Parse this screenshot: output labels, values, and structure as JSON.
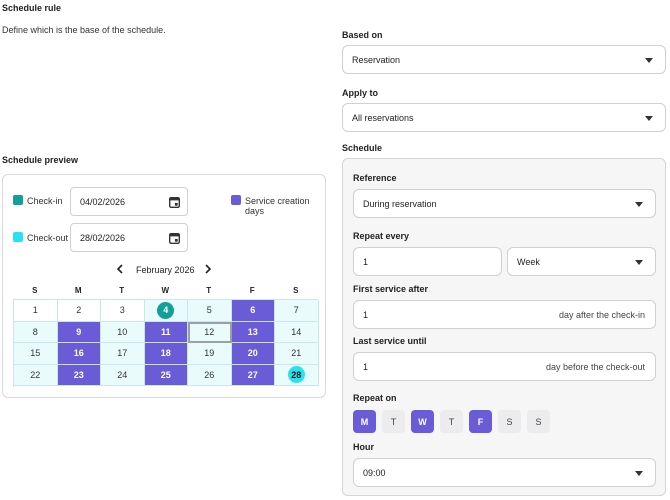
{
  "header": {
    "title": "Schedule rule",
    "description": "Define which is the base of the schedule."
  },
  "based_on": {
    "label": "Based on",
    "value": "Reservation"
  },
  "apply_to": {
    "label": "Apply to",
    "value": "All reservations"
  },
  "schedule": {
    "label": "Schedule",
    "reference": {
      "label": "Reference",
      "value": "During reservation"
    },
    "repeat_every": {
      "label": "Repeat every",
      "number": "1",
      "unit": "Week"
    },
    "first_service": {
      "label": "First service after",
      "number": "1",
      "suffix": "day after the check-in"
    },
    "last_service": {
      "label": "Last service until",
      "number": "1",
      "suffix": "day before the check-out"
    },
    "repeat_on": {
      "label": "Repeat on",
      "days": [
        {
          "label": "M",
          "on": true
        },
        {
          "label": "T",
          "on": false
        },
        {
          "label": "W",
          "on": true
        },
        {
          "label": "T",
          "on": false
        },
        {
          "label": "F",
          "on": true
        },
        {
          "label": "S",
          "on": false
        },
        {
          "label": "S",
          "on": false
        }
      ]
    },
    "hour": {
      "label": "Hour",
      "value": "09:00"
    }
  },
  "preview": {
    "title": "Schedule preview",
    "checkin": {
      "label": "Check-in",
      "date": "04/02/2026"
    },
    "checkout": {
      "label": "Check-out",
      "date": "28/02/2026"
    },
    "service_legend": "Service creation days",
    "month": "February 2026",
    "weekdays": [
      "S",
      "M",
      "T",
      "W",
      "T",
      "F",
      "S"
    ],
    "weeks": [
      [
        "1",
        "2",
        "3",
        "4",
        "5",
        "6",
        "7"
      ],
      [
        "8",
        "9",
        "10",
        "11",
        "12",
        "13",
        "14"
      ],
      [
        "15",
        "16",
        "17",
        "18",
        "19",
        "20",
        "21"
      ],
      [
        "22",
        "23",
        "24",
        "25",
        "26",
        "27",
        "28"
      ]
    ]
  },
  "colors": {
    "accent": "#6a5bd6",
    "checkin": "#129f98",
    "checkout": "#27e3f0",
    "period": "#e9fbfb"
  }
}
